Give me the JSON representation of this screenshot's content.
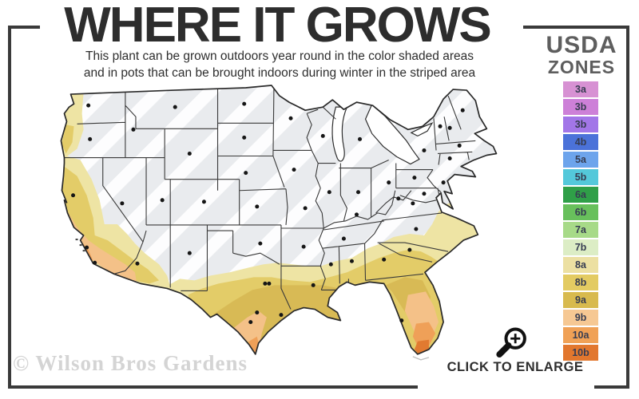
{
  "header": {
    "title": "WHERE IT GROWS",
    "subtitle_line1": "This plant can be grown outdoors year round in the color shaded areas",
    "subtitle_line2": "and in pots that can be brought indoors during winter in the striped area"
  },
  "legend": {
    "title_line1": "USDA",
    "title_line2": "ZONES",
    "zones": [
      {
        "label": "3a",
        "color": "#d791d3"
      },
      {
        "label": "3b",
        "color": "#cd80d8"
      },
      {
        "label": "3b",
        "color": "#a276e8"
      },
      {
        "label": "4b",
        "color": "#4b72d9"
      },
      {
        "label": "5a",
        "color": "#6da4ec"
      },
      {
        "label": "5b",
        "color": "#54c8da"
      },
      {
        "label": "6a",
        "color": "#2f9f48"
      },
      {
        "label": "6b",
        "color": "#68c05c"
      },
      {
        "label": "7a",
        "color": "#a7da88"
      },
      {
        "label": "7b",
        "color": "#dcedc5"
      },
      {
        "label": "8a",
        "color": "#ece0a2"
      },
      {
        "label": "8b",
        "color": "#e3cb62"
      },
      {
        "label": "9a",
        "color": "#d8ba4e"
      },
      {
        "label": "9b",
        "color": "#f6c893"
      },
      {
        "label": "10a",
        "color": "#f0a156"
      },
      {
        "label": "10b",
        "color": "#e2772e"
      }
    ]
  },
  "map": {
    "zone_colors": {
      "base": "#e9ebee",
      "stripe": "#ffffff",
      "z8a": "#eee4a4",
      "z8b": "#e3cc68",
      "z9a": "#d8ba55",
      "z9b": "#f4c188",
      "z10a": "#efa058",
      "z10b": "#e17a30"
    }
  },
  "footer": {
    "watermark": "© Wilson Bros Gardens",
    "enlarge_label": "CLICK TO ENLARGE"
  },
  "colors": {
    "frame": "#3a3a3a",
    "title_text": "#2d2d2d",
    "legend_title_text": "#5e5e5e",
    "watermark_text": "#d4d4d4"
  }
}
